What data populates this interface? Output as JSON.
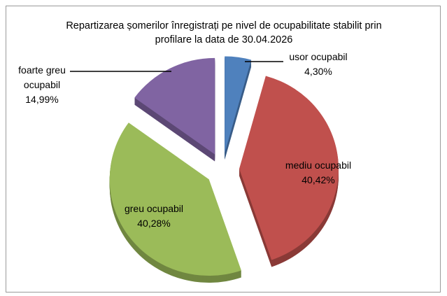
{
  "chart_data": {
    "type": "pie",
    "title": "Repartizarea șomerilor înregistrați pe nivel de ocupabilitate stabilit prin profilare la data de 30.04.2026",
    "categories": [
      "usor ocupabil",
      "mediu ocupabil",
      "greu ocupabil",
      "foarte greu ocupabil"
    ],
    "values": [
      4.3,
      40.42,
      40.28,
      14.99
    ],
    "value_labels": [
      "4,30%",
      "40,42%",
      "40,28%",
      "14,99%"
    ],
    "colors": [
      "#4f81bd",
      "#c0504d",
      "#9bbb59",
      "#8064a2"
    ]
  }
}
